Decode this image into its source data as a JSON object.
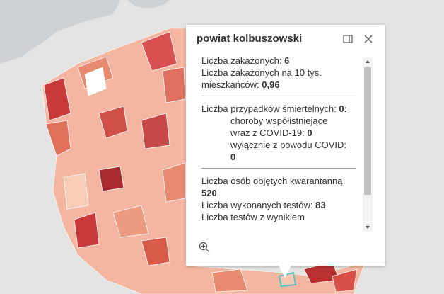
{
  "popup": {
    "title": "powiat kolbuszowski",
    "infected": {
      "label": "Liczba zakażonych:",
      "value": 6
    },
    "infected_per_10k": {
      "label": "Liczba zakażonych na 10 tys. mieszkańców:",
      "value": "0,96"
    },
    "deaths": {
      "label": "Liczba przypadków śmiertelnych:",
      "value": "0:"
    },
    "deaths_comorbid": {
      "label": "choroby współistniejące wraz z COVID-19:",
      "value": 0
    },
    "deaths_covid_only": {
      "label": "wyłącznie z powodu COVID:",
      "value": 0
    },
    "quarantine": {
      "label": "Liczba osób objętych kwarantanną",
      "value": 520
    },
    "tests": {
      "label": "Liczba wykonanych testów:",
      "value": 83
    },
    "tests_result": {
      "label": "Liczba testów z wynikiem"
    }
  }
}
